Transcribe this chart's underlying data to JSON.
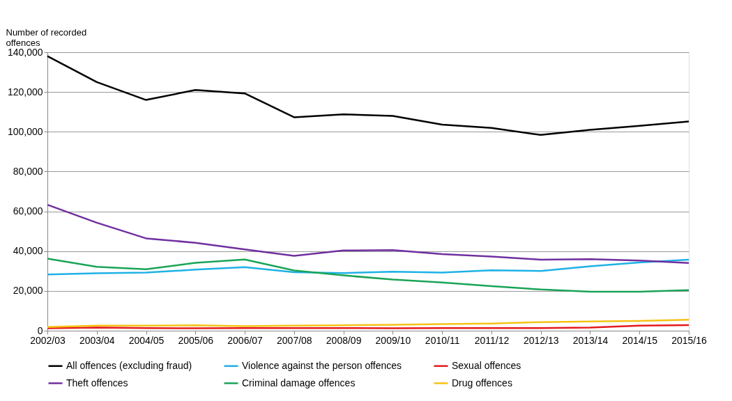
{
  "chart_data": {
    "type": "line",
    "ylabel": "Number of recorded offences",
    "categories": [
      "2002/03",
      "2003/04",
      "2004/05",
      "2005/06",
      "2006/07",
      "2007/08",
      "2008/09",
      "2009/10",
      "2010/11",
      "2011/12",
      "2012/13",
      "2013/14",
      "2014/15",
      "2015/16"
    ],
    "series": [
      {
        "name": "All offences (excluding fraud)",
        "color": "#000000",
        "values": [
          138000,
          125000,
          116000,
          121000,
          119300,
          107300,
          108800,
          108000,
          103600,
          101900,
          98400,
          101000,
          103000,
          105200
        ]
      },
      {
        "name": "Violence against the person offences",
        "color": "#1fb1e6",
        "values": [
          28300,
          28900,
          29200,
          30700,
          31900,
          29400,
          29000,
          29700,
          29200,
          30400,
          30000,
          32400,
          34300,
          35700
        ]
      },
      {
        "name": "Sexual offences",
        "color": "#e41a1c",
        "values": [
          1200,
          1600,
          1300,
          1200,
          1300,
          1300,
          1300,
          1200,
          1300,
          1300,
          1300,
          1600,
          2500,
          2800
        ]
      },
      {
        "name": "Theft offences",
        "color": "#7030a0",
        "values": [
          63300,
          54300,
          46400,
          44200,
          40900,
          37600,
          40300,
          40500,
          38500,
          37300,
          35700,
          36000,
          35300,
          34000
        ]
      },
      {
        "name": "Criminal damage offences",
        "color": "#1aa457",
        "values": [
          36200,
          32100,
          30900,
          34100,
          35800,
          30300,
          27800,
          25700,
          24200,
          22400,
          20700,
          19600,
          19600,
          20400
        ]
      },
      {
        "name": "Drug offences",
        "color": "#f5c216",
        "values": [
          1800,
          2500,
          2500,
          2700,
          2300,
          2500,
          2700,
          3000,
          3300,
          3600,
          4300,
          4600,
          4900,
          5500
        ]
      }
    ],
    "ylim": [
      0,
      140000
    ],
    "yticks": [
      {
        "value": 0,
        "label": "0"
      },
      {
        "value": 20000,
        "label": "20,000"
      },
      {
        "value": 40000,
        "label": "40,000"
      },
      {
        "value": 60000,
        "label": "60,000"
      },
      {
        "value": 80000,
        "label": "80,000"
      },
      {
        "value": 100000,
        "label": "100,000"
      },
      {
        "value": 120000,
        "label": "120,000"
      },
      {
        "value": 140000,
        "label": "140,000"
      }
    ],
    "grid": "y",
    "legend": "bottom",
    "marker": "none",
    "line_style": "solid"
  }
}
